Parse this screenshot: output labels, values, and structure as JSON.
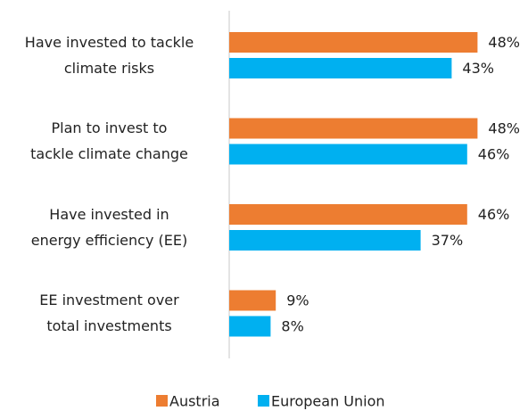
{
  "chart_data": {
    "type": "hbar",
    "categories": [
      "Have invested to tackle\nclimate risks",
      "Plan to invest to\ntackle climate change",
      "Have invested in\nenergy efficiency (EE)",
      "EE investment over\ntotal investments"
    ],
    "series": [
      {
        "name": "Austria",
        "color": "#ed7d31",
        "values": [
          48,
          48,
          46,
          9
        ],
        "value_labels": [
          "48%",
          "48%",
          "46%",
          "9%"
        ]
      },
      {
        "name": "European Union",
        "color": "#00b0f0",
        "values": [
          43,
          46,
          37,
          8
        ],
        "value_labels": [
          "43%",
          "46%",
          "37%",
          "8%"
        ]
      }
    ]
  }
}
